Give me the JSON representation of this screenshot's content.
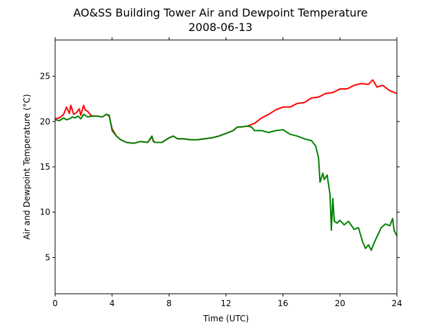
{
  "chart_data": {
    "type": "line",
    "title": "AO&SS Building Tower Air and Dewpoint Temperature",
    "subtitle": "2008-06-13",
    "xlabel": "Time (UTC)",
    "ylabel": "Air and Dewpoint Temperature (°C)",
    "xlim": [
      0,
      24
    ],
    "ylim": [
      1,
      29
    ],
    "xticks": [
      0,
      4,
      8,
      12,
      16,
      20,
      24
    ],
    "yticks": [
      5,
      10,
      15,
      20,
      25
    ],
    "grid": false,
    "legend": "none",
    "series": [
      {
        "color": "#ff0000",
        "x": [
          0,
          0.3,
          0.6,
          0.8,
          1.0,
          1.1,
          1.3,
          1.5,
          1.7,
          1.8,
          2.0,
          2.1,
          2.3,
          2.5,
          2.7,
          3.0,
          3.3,
          3.6,
          3.8,
          4.0,
          4.3,
          4.6,
          5.0,
          5.5,
          6.0,
          6.5,
          6.8,
          6.9,
          7.0,
          7.5,
          8.0,
          8.3,
          8.6,
          9.0,
          9.5,
          10.0,
          10.5,
          11.0,
          11.5,
          12.0,
          12.5,
          12.8,
          13.0,
          13.5,
          14.0,
          14.5,
          15.0,
          15.5,
          16.0,
          16.5,
          17.0,
          17.5,
          18.0,
          18.5,
          19.0,
          19.5,
          20.0,
          20.5,
          21.0,
          21.5,
          22.0,
          22.3,
          22.6,
          23.0,
          23.5,
          24.0
        ],
        "values": [
          20.3,
          20.4,
          20.8,
          21.6,
          20.9,
          21.8,
          20.8,
          21.0,
          21.4,
          20.7,
          21.8,
          21.3,
          21.1,
          20.7,
          20.6,
          20.6,
          20.5,
          20.8,
          20.6,
          19.2,
          18.4,
          18.0,
          17.7,
          17.6,
          17.8,
          17.7,
          18.3,
          17.9,
          17.7,
          17.7,
          18.2,
          18.4,
          18.1,
          18.1,
          18.0,
          18.0,
          18.1,
          18.2,
          18.4,
          18.7,
          19.0,
          19.4,
          19.4,
          19.5,
          19.8,
          20.4,
          20.8,
          21.3,
          21.6,
          21.6,
          22.0,
          22.1,
          22.6,
          22.7,
          23.1,
          23.2,
          23.6,
          23.6,
          24.0,
          24.2,
          24.1,
          24.6,
          23.8,
          24.0,
          23.4,
          23.1
        ]
      },
      {
        "color": "#008000",
        "x": [
          0,
          0.3,
          0.6,
          0.8,
          1.0,
          1.2,
          1.4,
          1.6,
          1.8,
          2.0,
          2.3,
          2.6,
          3.0,
          3.3,
          3.6,
          3.8,
          4.0,
          4.3,
          4.6,
          5.0,
          5.5,
          6.0,
          6.5,
          6.8,
          6.9,
          7.0,
          7.5,
          8.0,
          8.3,
          8.6,
          9.0,
          9.5,
          10.0,
          10.5,
          11.0,
          11.5,
          12.0,
          12.5,
          12.8,
          13.0,
          13.5,
          13.8,
          14.0,
          14.5,
          15.0,
          15.5,
          16.0,
          16.5,
          17.0,
          17.5,
          18.0,
          18.3,
          18.5,
          18.6,
          18.8,
          18.9,
          19.1,
          19.3,
          19.4,
          19.5,
          19.6,
          19.8,
          20.0,
          20.3,
          20.6,
          21.0,
          21.3,
          21.6,
          21.8,
          22.0,
          22.2,
          22.4,
          22.6,
          22.9,
          23.2,
          23.5,
          23.7,
          23.8,
          24.0
        ],
        "values": [
          20.2,
          20.1,
          20.4,
          20.2,
          20.3,
          20.5,
          20.4,
          20.6,
          20.3,
          20.8,
          20.5,
          20.6,
          20.6,
          20.5,
          20.8,
          20.7,
          19.0,
          18.4,
          18.0,
          17.7,
          17.6,
          17.8,
          17.7,
          18.4,
          17.8,
          17.7,
          17.7,
          18.2,
          18.4,
          18.1,
          18.1,
          18.0,
          18.0,
          18.1,
          18.2,
          18.4,
          18.7,
          19.0,
          19.4,
          19.4,
          19.5,
          19.4,
          19.0,
          19.0,
          18.8,
          19.0,
          19.1,
          18.6,
          18.4,
          18.1,
          17.9,
          17.3,
          16.0,
          13.3,
          14.3,
          13.6,
          14.1,
          12.0,
          8.0,
          11.5,
          9.0,
          8.8,
          9.1,
          8.6,
          9.0,
          8.1,
          8.3,
          6.7,
          6.0,
          6.4,
          5.8,
          6.6,
          7.3,
          8.3,
          8.7,
          8.5,
          9.3,
          8.0,
          7.4
        ]
      }
    ]
  }
}
